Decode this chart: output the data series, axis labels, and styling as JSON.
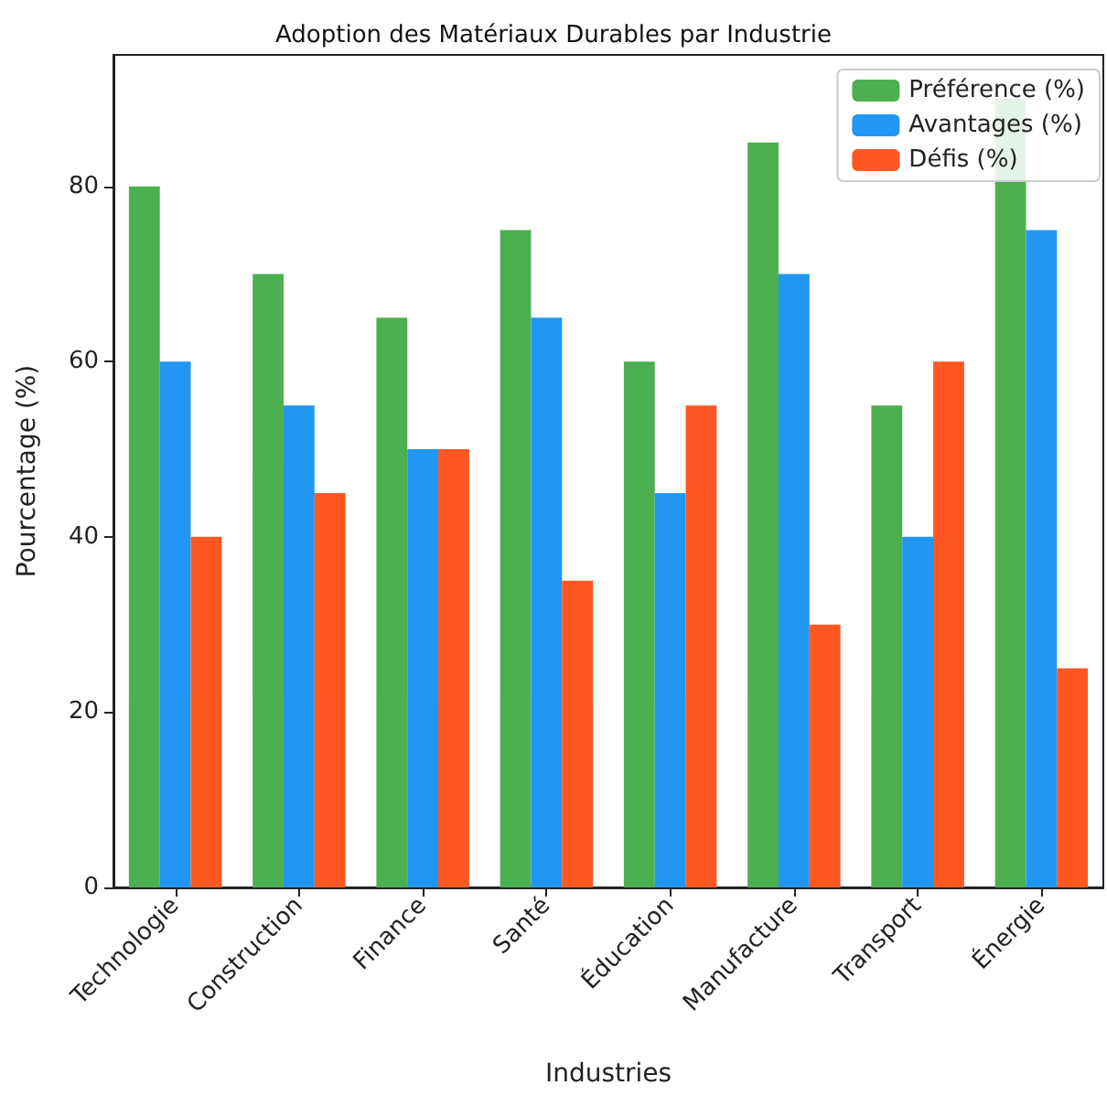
{
  "chart_data": {
    "type": "bar",
    "title": "Adoption des Matériaux Durables par Industrie",
    "xlabel": "Industries",
    "ylabel": "Pourcentage (%)",
    "categories": [
      "Technologie",
      "Construction",
      "Finance",
      "Santé",
      "Éducation",
      "Manufacture",
      "Transport",
      "Énergie"
    ],
    "series": [
      {
        "name": "Préférence (%)",
        "color": "#4caf50",
        "values": [
          80,
          70,
          65,
          75,
          60,
          85,
          55,
          90
        ]
      },
      {
        "name": "Avantages (%)",
        "color": "#2196f3",
        "values": [
          60,
          55,
          50,
          65,
          45,
          70,
          40,
          75
        ]
      },
      {
        "name": "Défis (%)",
        "color": "#ff5722",
        "values": [
          40,
          45,
          50,
          35,
          55,
          30,
          60,
          25
        ]
      }
    ],
    "ylim": [
      0,
      95
    ],
    "yticks": [
      0,
      20,
      40,
      60,
      80
    ],
    "grid": false,
    "legend": "top right"
  }
}
